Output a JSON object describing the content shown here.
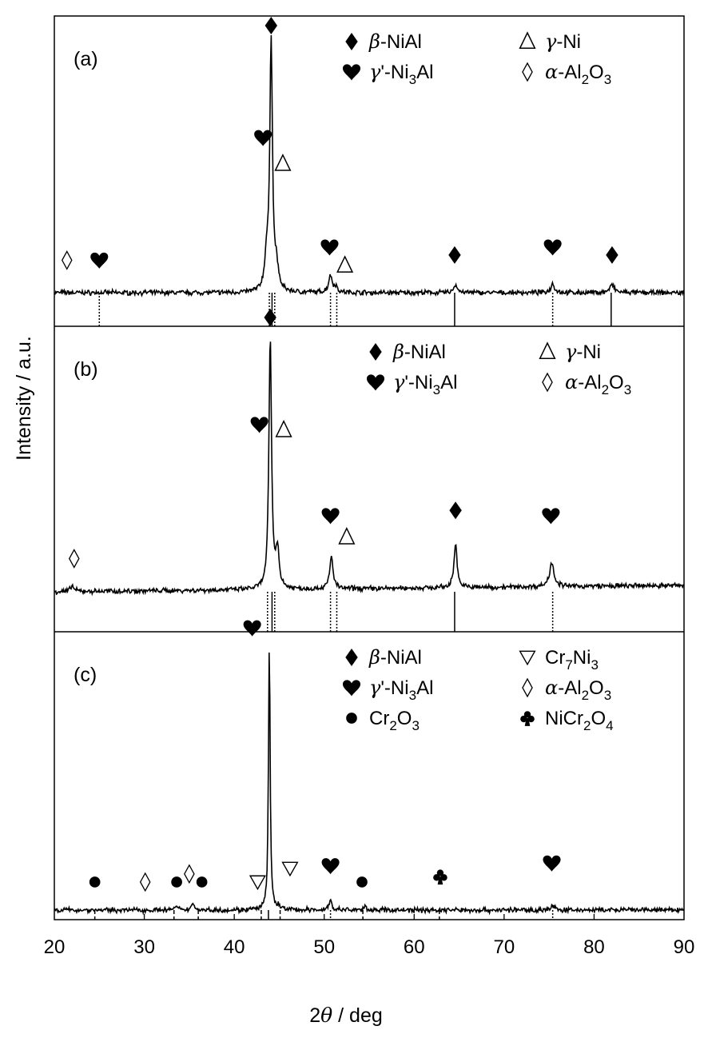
{
  "chart_data": {
    "type": "line",
    "x_axis": {
      "label_var": "θ",
      "label_pre": "2",
      "label_post": " / deg",
      "min": 20,
      "max": 90,
      "ticks": [
        "20",
        "30",
        "40",
        "50",
        "60",
        "70",
        "80",
        "90"
      ]
    },
    "y_axis": {
      "label": "Intensity / a.u."
    },
    "panels": [
      {
        "id": "a",
        "label": "(a)",
        "legend": [
          {
            "sym": "diamond",
            "greek": "β",
            "text": "-NiAl",
            "col": 1,
            "row": 0
          },
          {
            "sym": "heart",
            "greek": "γ",
            "text": "'-Ni",
            "sub": "3",
            "tail": "Al",
            "col": 1,
            "row": 1
          },
          {
            "sym": "delta",
            "greek": "γ",
            "text": "-Ni",
            "col": 2,
            "row": 0
          },
          {
            "sym": "odiamond",
            "greek": "α",
            "text": "-Al",
            "sub": "2",
            "tail": "O",
            "sub2": "3",
            "col": 2,
            "row": 1
          }
        ],
        "peaks": [
          {
            "x": 44.1,
            "h": 0.96,
            "w": 0.35
          },
          {
            "x": 43.6,
            "h": 0.12,
            "w": 0.5
          },
          {
            "x": 44.7,
            "h": 0.08,
            "w": 0.5
          },
          {
            "x": 50.7,
            "h": 0.065,
            "w": 0.5
          },
          {
            "x": 51.3,
            "h": 0.02,
            "w": 0.4
          },
          {
            "x": 64.6,
            "h": 0.03,
            "w": 0.5
          },
          {
            "x": 75.4,
            "h": 0.035,
            "w": 0.5
          },
          {
            "x": 82.0,
            "h": 0.03,
            "w": 0.6
          }
        ],
        "markers": [
          {
            "sym": "odiamond",
            "x": 21.4,
            "lvl": 0.1
          },
          {
            "sym": "heart",
            "x": 25.0,
            "lvl": 0.1
          },
          {
            "sym": "heart",
            "x": 43.2,
            "lvl": 0.57
          },
          {
            "sym": "delta",
            "x": 45.4,
            "lvl": 0.47
          },
          {
            "sym": "diamond",
            "x": 44.1,
            "lvl": 1.0
          },
          {
            "sym": "heart",
            "x": 50.6,
            "lvl": 0.15
          },
          {
            "sym": "delta",
            "x": 52.3,
            "lvl": 0.08
          },
          {
            "sym": "diamond",
            "x": 64.5,
            "lvl": 0.12
          },
          {
            "sym": "heart",
            "x": 75.4,
            "lvl": 0.15
          },
          {
            "sym": "diamond",
            "x": 82.0,
            "lvl": 0.12
          }
        ],
        "ref_lines": [
          {
            "x": 25.0,
            "style": "dot",
            "h": 0.35
          },
          {
            "x": 43.9,
            "style": "dot",
            "h": 0.35
          },
          {
            "x": 44.2,
            "style": "solid",
            "h": 0.35
          },
          {
            "x": 44.5,
            "style": "dot",
            "h": 0.35
          },
          {
            "x": 50.7,
            "style": "dot",
            "h": 0.35
          },
          {
            "x": 51.4,
            "style": "dot",
            "h": 0.35
          },
          {
            "x": 64.5,
            "style": "solid",
            "h": 0.35
          },
          {
            "x": 75.4,
            "style": "dot",
            "h": 0.35
          },
          {
            "x": 81.9,
            "style": "solid",
            "h": 0.35
          }
        ]
      },
      {
        "id": "b",
        "label": "(b)",
        "legend": [
          {
            "sym": "diamond",
            "greek": "β",
            "text": "-NiAl",
            "col": 1,
            "row": 0
          },
          {
            "sym": "heart",
            "greek": "γ",
            "text": "'-Ni",
            "sub": "3",
            "tail": "Al",
            "col": 1,
            "row": 1
          },
          {
            "sym": "delta",
            "greek": "γ",
            "text": "-Ni",
            "col": 2,
            "row": 0
          },
          {
            "sym": "odiamond",
            "greek": "α",
            "text": "-Al",
            "sub": "2",
            "tail": "O",
            "sub2": "3",
            "col": 2,
            "row": 1
          }
        ],
        "peaks": [
          {
            "x": 44.0,
            "h": 0.94,
            "w": 0.35
          },
          {
            "x": 44.8,
            "h": 0.14,
            "w": 0.45
          },
          {
            "x": 50.8,
            "h": 0.12,
            "w": 0.45
          },
          {
            "x": 64.6,
            "h": 0.17,
            "w": 0.4
          },
          {
            "x": 75.3,
            "h": 0.09,
            "w": 0.6
          },
          {
            "x": 22.0,
            "h": 0.02,
            "w": 0.5
          }
        ],
        "markers": [
          {
            "sym": "odiamond",
            "x": 22.2,
            "lvl": 0.1
          },
          {
            "sym": "heart",
            "x": 42.8,
            "lvl": 0.6
          },
          {
            "sym": "delta",
            "x": 45.5,
            "lvl": 0.58
          },
          {
            "sym": "diamond",
            "x": 44.0,
            "lvl": 1.0
          },
          {
            "sym": "heart",
            "x": 50.7,
            "lvl": 0.26
          },
          {
            "sym": "delta",
            "x": 52.5,
            "lvl": 0.18
          },
          {
            "sym": "diamond",
            "x": 64.6,
            "lvl": 0.28
          },
          {
            "sym": "heart",
            "x": 75.2,
            "lvl": 0.26
          }
        ],
        "ref_lines": [
          {
            "x": 43.7,
            "style": "dot",
            "h": 0.5
          },
          {
            "x": 44.2,
            "style": "solid",
            "h": 0.5
          },
          {
            "x": 44.5,
            "style": "dot",
            "h": 0.5
          },
          {
            "x": 50.7,
            "style": "dot",
            "h": 0.5
          },
          {
            "x": 51.4,
            "style": "dot",
            "h": 0.5
          },
          {
            "x": 64.5,
            "style": "solid",
            "h": 0.5
          },
          {
            "x": 75.4,
            "style": "dot",
            "h": 0.5
          }
        ]
      },
      {
        "id": "c",
        "label": "(c)",
        "legend": [
          {
            "sym": "diamond",
            "greek": "β",
            "text": "-NiAl",
            "col": 1,
            "row": 0
          },
          {
            "sym": "heart",
            "greek": "γ",
            "text": "'-Ni",
            "sub": "3",
            "tail": "Al",
            "col": 1,
            "row": 1
          },
          {
            "sym": "dot",
            "greek": "",
            "text": "Cr",
            "sub": "2",
            "tail": "O",
            "sub2": "3",
            "col": 1,
            "row": 2
          },
          {
            "sym": "tri",
            "greek": "",
            "text": "Cr",
            "sub": "7",
            "tail": "Ni",
            "sub2": "3",
            "col": 2,
            "row": 0
          },
          {
            "sym": "odiamond",
            "greek": "α",
            "text": "-Al",
            "sub": "2",
            "tail": "O",
            "sub2": "3",
            "col": 2,
            "row": 1
          },
          {
            "sym": "club",
            "greek": "",
            "text": "NiCr",
            "sub": "2",
            "tail": "O",
            "sub2": "4",
            "col": 2,
            "row": 2
          }
        ],
        "peaks": [
          {
            "x": 43.9,
            "h": 0.99,
            "w": 0.22
          },
          {
            "x": 50.7,
            "h": 0.035,
            "w": 0.4
          },
          {
            "x": 75.4,
            "h": 0.015,
            "w": 0.5
          },
          {
            "x": 35.4,
            "h": 0.025,
            "w": 0.4
          },
          {
            "x": 33.5,
            "h": 0.012,
            "w": 0.4
          },
          {
            "x": 45.0,
            "h": 0.012,
            "w": 0.4
          },
          {
            "x": 54.6,
            "h": 0.01,
            "w": 0.4
          }
        ],
        "markers": [
          {
            "sym": "dot",
            "x": 24.5,
            "lvl": 0.08
          },
          {
            "sym": "odiamond",
            "x": 30.1,
            "lvl": 0.08
          },
          {
            "sym": "dot",
            "x": 33.6,
            "lvl": 0.08
          },
          {
            "sym": "odiamond",
            "x": 35.0,
            "lvl": 0.11
          },
          {
            "sym": "dot",
            "x": 36.4,
            "lvl": 0.08
          },
          {
            "sym": "tri",
            "x": 42.6,
            "lvl": 0.08
          },
          {
            "sym": "heart",
            "x": 42.0,
            "lvl": 1.02
          },
          {
            "sym": "tri",
            "x": 46.2,
            "lvl": 0.13
          },
          {
            "sym": "heart",
            "x": 50.7,
            "lvl": 0.14
          },
          {
            "sym": "dot",
            "x": 54.2,
            "lvl": 0.08
          },
          {
            "sym": "club",
            "x": 62.9,
            "lvl": 0.1
          },
          {
            "sym": "heart",
            "x": 75.3,
            "lvl": 0.15
          }
        ],
        "ref_lines": [
          {
            "x": 24.5,
            "style": "dash",
            "h": 0.3
          },
          {
            "x": 33.3,
            "style": "dash",
            "h": 0.3
          },
          {
            "x": 36.0,
            "style": "dash",
            "h": 0.3
          },
          {
            "x": 43.0,
            "style": "dash",
            "h": 0.3
          },
          {
            "x": 43.8,
            "style": "solid",
            "h": 0.3
          },
          {
            "x": 45.1,
            "style": "dash",
            "h": 0.3
          },
          {
            "x": 50.7,
            "style": "dot",
            "h": 0.3
          },
          {
            "x": 54.3,
            "style": "dash",
            "h": 0.3
          },
          {
            "x": 62.8,
            "style": "dash",
            "h": 0.3
          },
          {
            "x": 75.4,
            "style": "dot",
            "h": 0.3
          }
        ]
      }
    ]
  }
}
